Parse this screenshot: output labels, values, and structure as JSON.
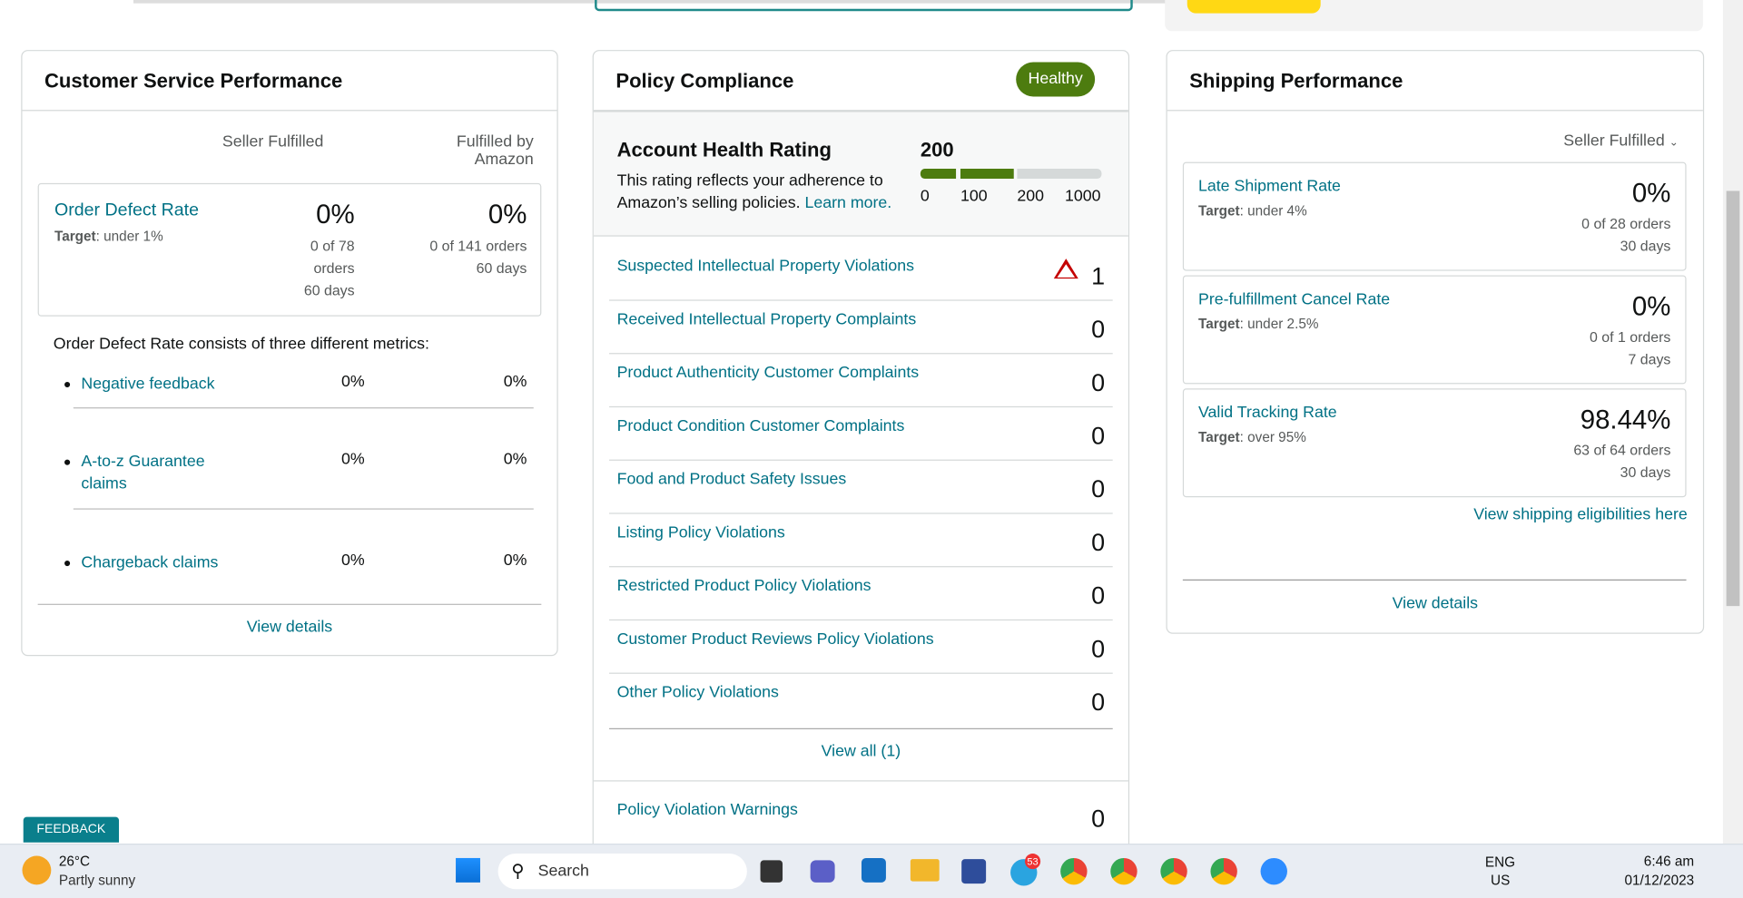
{
  "customer_service": {
    "title": "Customer Service Performance",
    "col_seller": "Seller Fulfilled",
    "col_fba": "Fulfilled by Amazon",
    "odr": {
      "name": "Order Defect Rate",
      "target_label": "Target",
      "target": ": under 1%",
      "seller_value": "0%",
      "seller_orders": "0 of 78 orders",
      "seller_days": "60 days",
      "fba_value": "0%",
      "fba_orders": "0 of 141 orders",
      "fba_days": "60 days"
    },
    "intro": "Order Defect Rate consists of three different metrics:",
    "metrics": [
      {
        "name": "Negative feedback",
        "seller": "0%",
        "fba": "0%"
      },
      {
        "name": "A-to-z Guarantee claims",
        "seller": "0%",
        "fba": "0%"
      },
      {
        "name": "Chargeback claims",
        "seller": "0%",
        "fba": "0%"
      }
    ],
    "view_details": "View details"
  },
  "policy": {
    "title": "Policy Compliance",
    "status": "Healthy",
    "rating_title": "Account Health Rating",
    "rating": "200",
    "desc": "This rating reflects your adherence to Amazon’s selling policies.",
    "learn_more": "Learn more.",
    "scale": [
      "0",
      "100",
      "200",
      "1000"
    ],
    "rows": [
      {
        "name": "Suspected Intellectual Property Violations",
        "count": "1"
      },
      {
        "name": "Received Intellectual Property Complaints",
        "count": "0"
      },
      {
        "name": "Product Authenticity Customer Complaints",
        "count": "0"
      },
      {
        "name": "Product Condition Customer Complaints",
        "count": "0"
      },
      {
        "name": "Food and Product Safety Issues",
        "count": "0"
      },
      {
        "name": "Listing Policy Violations",
        "count": "0"
      },
      {
        "name": "Restricted Product Policy Violations",
        "count": "0"
      },
      {
        "name": "Customer Product Reviews Policy Violations",
        "count": "0"
      },
      {
        "name": "Other Policy Violations",
        "count": "0"
      }
    ],
    "view_all": "View all (1)",
    "warnings": {
      "name": "Policy Violation Warnings",
      "count": "0"
    }
  },
  "shipping": {
    "title": "Shipping Performance",
    "filter": "Seller Fulfilled",
    "metrics": [
      {
        "name": "Late Shipment Rate",
        "target_label": "Target",
        "target": ": under 4%",
        "value": "0%",
        "orders": "0 of 28 orders",
        "days": "30 days"
      },
      {
        "name": "Pre-fulfillment Cancel Rate",
        "target_label": "Target",
        "target": ": under 2.5%",
        "value": "0%",
        "orders": "0 of 1 orders",
        "days": "7 days"
      },
      {
        "name": "Valid Tracking Rate",
        "target_label": "Target",
        "target": ": over 95%",
        "value": "98.44%",
        "orders": "63 of 64 orders",
        "days": "30 days"
      }
    ],
    "eligibility": "View shipping eligibilities here",
    "view_details": "View details"
  },
  "feedback": "FEEDBACK",
  "taskbar": {
    "temp": "26°C",
    "weather": "Partly sunny",
    "search": "Search",
    "telegram_badge": "53",
    "lang": "ENG",
    "region": "US",
    "time": "6:46 am",
    "date": "01/12/2023"
  }
}
